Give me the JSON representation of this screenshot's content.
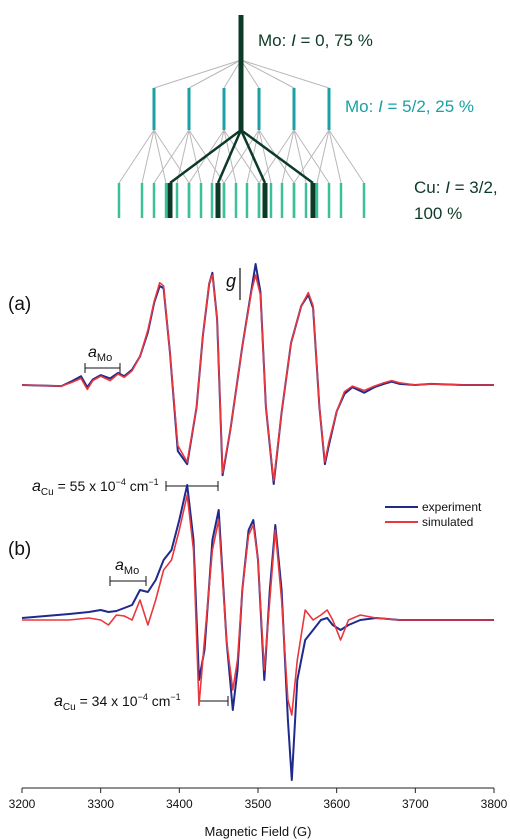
{
  "colors": {
    "mo_zero": "#0d3a26",
    "mo_52": "#1aa0a6",
    "cu": "#3cc09a",
    "experiment": "#1f2a8c",
    "simulated": "#e8383d",
    "grey_line": "#b8b8b8",
    "axis": "#222222"
  },
  "stick_diagram": {
    "level1_label_prefix": "Mo: ",
    "level1_label_var": "I",
    "level1_label_rest": " = 0, 75 %",
    "level2_label_prefix": "Mo: ",
    "level2_label_var": "I",
    "level2_label_rest": " = 5/2, 25 %",
    "level3_label_line1_prefix": "Cu: ",
    "level3_label_line1_var": "I",
    "level3_label_line1_rest": " = 3/2,",
    "level3_label_line2": "100 %"
  },
  "panel_a": {
    "label": "(a)",
    "g_label": "g",
    "aMo_label_main": "a",
    "aMo_label_sub": "Mo",
    "aCu_label_main": "a",
    "aCu_label_sub": "Cu",
    "aCu_label_rest": " = 55 x 10",
    "aCu_label_exp": "−4",
    "aCu_label_unit": " cm",
    "aCu_label_unit_exp": "−1"
  },
  "panel_b": {
    "label": "(b)",
    "aMo_label_main": "a",
    "aMo_label_sub": "Mo",
    "aCu_label_main": "a",
    "aCu_label_sub": "Cu",
    "aCu_label_rest": " = 34 x 10",
    "aCu_label_exp": "−4",
    "aCu_label_unit": " cm",
    "aCu_label_unit_exp": "−1"
  },
  "legend": {
    "experiment": "experiment",
    "simulated": "simulated"
  },
  "chart_data": {
    "type": "line",
    "xlabel": "Magnetic Field (G)",
    "xlim": [
      3200,
      3800
    ],
    "x_ticks": [
      "3200",
      "3300",
      "3400",
      "3500",
      "3600",
      "3700",
      "3800"
    ],
    "grid": false,
    "legend_position": "right",
    "panels": [
      {
        "label": "(a)",
        "g_marker_field": 3455,
        "aMo_bracket": [
          3277,
          3327
        ],
        "aCu_bracket": [
          3384,
          3450
        ],
        "series": [
          {
            "name": "experiment",
            "x": [
              3200,
              3250,
              3262,
              3275,
              3283,
              3290,
              3300,
              3312,
              3322,
              3330,
              3340,
              3350,
              3360,
              3368,
              3375,
              3380,
              3388,
              3398,
              3410,
              3422,
              3430,
              3438,
              3442,
              3448,
              3455,
              3465,
              3480,
              3492,
              3497,
              3503,
              3510,
              3520,
              3530,
              3542,
              3555,
              3564,
              3570,
              3578,
              3585,
              3590,
              3600,
              3610,
              3620,
              3635,
              3648,
              3660,
              3670,
              3680,
              3700,
              3720,
              3760,
              3800
            ],
            "y": [
              0,
              -0.01,
              0.03,
              0.08,
              -0.02,
              0.05,
              0.09,
              0.06,
              0.11,
              0.08,
              0.14,
              0.26,
              0.48,
              0.75,
              0.9,
              0.88,
              0.3,
              -0.6,
              -0.72,
              -0.2,
              0.45,
              0.92,
              1.02,
              0.6,
              -0.82,
              -0.4,
              0.35,
              0.88,
              1.1,
              0.85,
              -0.2,
              -0.9,
              -0.25,
              0.38,
              0.72,
              0.82,
              0.7,
              -0.2,
              -0.72,
              -0.55,
              -0.24,
              -0.08,
              -0.02,
              -0.07,
              -0.02,
              0.01,
              0.03,
              0.01,
              0,
              0.01,
              0,
              0
            ]
          },
          {
            "name": "simulated",
            "x": [
              3200,
              3250,
              3262,
              3275,
              3283,
              3290,
              3300,
              3312,
              3322,
              3330,
              3340,
              3350,
              3360,
              3368,
              3375,
              3380,
              3388,
              3398,
              3410,
              3422,
              3430,
              3438,
              3442,
              3448,
              3455,
              3465,
              3480,
              3492,
              3497,
              3503,
              3510,
              3520,
              3530,
              3542,
              3555,
              3564,
              3570,
              3578,
              3585,
              3590,
              3600,
              3610,
              3620,
              3635,
              3648,
              3660,
              3670,
              3680,
              3700,
              3720,
              3760,
              3800
            ],
            "y": [
              0,
              -0.01,
              0.02,
              0.06,
              -0.04,
              0.04,
              0.08,
              0.04,
              0.1,
              0.07,
              0.13,
              0.26,
              0.5,
              0.76,
              0.93,
              0.9,
              0.3,
              -0.55,
              -0.7,
              -0.2,
              0.45,
              0.93,
              1.0,
              0.6,
              -0.8,
              -0.4,
              0.35,
              0.86,
              1.0,
              0.82,
              -0.2,
              -0.87,
              -0.25,
              0.38,
              0.72,
              0.84,
              0.72,
              -0.2,
              -0.7,
              -0.52,
              -0.24,
              -0.06,
              -0.01,
              -0.05,
              -0.01,
              0.02,
              0.04,
              0.02,
              0,
              0.01,
              0,
              0
            ]
          }
        ]
      },
      {
        "label": "(b)",
        "aMo_bracket": [
          3312,
          3357
        ],
        "aCu_bracket": [
          3427,
          3460
        ],
        "series": [
          {
            "name": "experiment",
            "x": [
              3200,
              3260,
              3285,
              3300,
              3310,
              3320,
              3330,
              3340,
              3350,
              3360,
              3370,
              3380,
              3390,
              3400,
              3410,
              3418,
              3425,
              3432,
              3442,
              3450,
              3460,
              3468,
              3474,
              3480,
              3488,
              3494,
              3500,
              3508,
              3515,
              3522,
              3530,
              3538,
              3543,
              3550,
              3560,
              3570,
              3580,
              3588,
              3595,
              3605,
              3615,
              3630,
              3650,
              3680,
              3720,
              3760,
              3800
            ],
            "y": [
              0.02,
              0.06,
              0.08,
              0.1,
              0.08,
              0.09,
              0.12,
              0.15,
              0.3,
              0.28,
              0.4,
              0.6,
              0.7,
              1.0,
              1.35,
              0.8,
              -0.6,
              -0.3,
              0.8,
              1.1,
              -0.2,
              -0.9,
              -0.5,
              0.3,
              0.9,
              1.0,
              0.6,
              -0.6,
              0.3,
              0.95,
              0.3,
              -1.0,
              -1.6,
              -0.6,
              -0.2,
              -0.1,
              0.0,
              0.02,
              -0.05,
              -0.1,
              -0.05,
              0.0,
              0.02,
              0.0,
              0.0,
              0.0,
              0.0
            ]
          },
          {
            "name": "simulated",
            "x": [
              3200,
              3260,
              3285,
              3300,
              3310,
              3320,
              3330,
              3340,
              3350,
              3360,
              3370,
              3380,
              3390,
              3400,
              3410,
              3418,
              3425,
              3432,
              3442,
              3450,
              3460,
              3468,
              3474,
              3480,
              3488,
              3494,
              3500,
              3508,
              3515,
              3522,
              3530,
              3538,
              3543,
              3550,
              3560,
              3570,
              3580,
              3588,
              3595,
              3605,
              3615,
              3630,
              3650,
              3680,
              3720,
              3760,
              3800
            ],
            "y": [
              0.0,
              0.0,
              0.02,
              0.0,
              -0.05,
              0.05,
              0.04,
              0.0,
              0.2,
              -0.05,
              0.2,
              0.5,
              0.6,
              0.9,
              1.25,
              0.7,
              -0.85,
              -0.2,
              0.7,
              1.0,
              -0.2,
              -0.7,
              -0.4,
              0.3,
              0.85,
              0.95,
              0.6,
              -0.5,
              0.2,
              0.9,
              0.2,
              -0.8,
              -0.95,
              -0.4,
              0.1,
              0.0,
              0.05,
              0.1,
              0.0,
              -0.2,
              0.0,
              0.05,
              0.02,
              0.0,
              0.0,
              0.0,
              0.0
            ]
          }
        ]
      }
    ]
  }
}
